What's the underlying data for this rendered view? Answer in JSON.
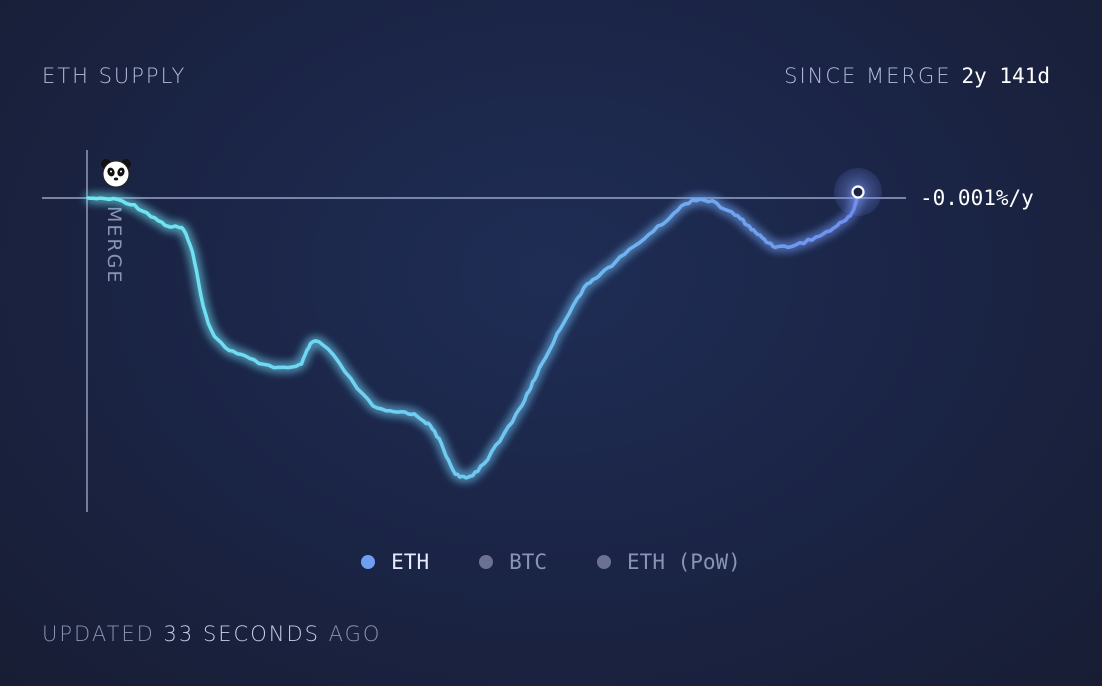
{
  "header": {
    "title": "ETH SUPPLY",
    "since_label": "SINCE MERGE",
    "since_value": "2y 141d"
  },
  "marker": {
    "label": "MERGE",
    "icon": "panda-icon"
  },
  "current_rate": "-0.001%/y",
  "legend": [
    {
      "label": "ETH",
      "active": true,
      "color": "#6f9ff1"
    },
    {
      "label": "BTC",
      "active": false,
      "color": "#6b7291"
    },
    {
      "label": "ETH (PoW)",
      "active": false,
      "color": "#6b7291"
    }
  ],
  "footer": {
    "prefix": "UPDATED",
    "count": "33",
    "unit": "SECONDS",
    "suffix": "AGO"
  },
  "colors": {
    "line_start": "#6fe8f2",
    "line_end": "#6f8ff0",
    "background": "#1b2547",
    "reference_line": "#9aa3c8"
  },
  "chart_data": {
    "type": "line",
    "title": "ETH SUPPLY",
    "x": [
      0,
      0.05,
      0.1,
      0.13,
      0.16,
      0.21,
      0.27,
      0.3,
      0.37,
      0.42,
      0.45,
      0.48,
      0.51,
      0.56,
      0.59,
      0.64,
      0.68,
      0.74,
      0.79,
      0.84,
      0.87,
      0.9,
      0.95,
      0.99,
      1
    ],
    "y": [
      0,
      -0.15,
      -0.95,
      -1.45,
      -4.7,
      -5.75,
      -6.05,
      -5.15,
      -7.4,
      -7.7,
      -8.35,
      -9.9,
      -9.6,
      -7.55,
      -5.9,
      -3.4,
      -2.4,
      -1.05,
      -0.05,
      -0.6,
      -1.3,
      -1.75,
      -1.35,
      -0.6,
      0.25
    ],
    "y_reference": 0,
    "grid": false,
    "legend_position": "bottom-center"
  }
}
